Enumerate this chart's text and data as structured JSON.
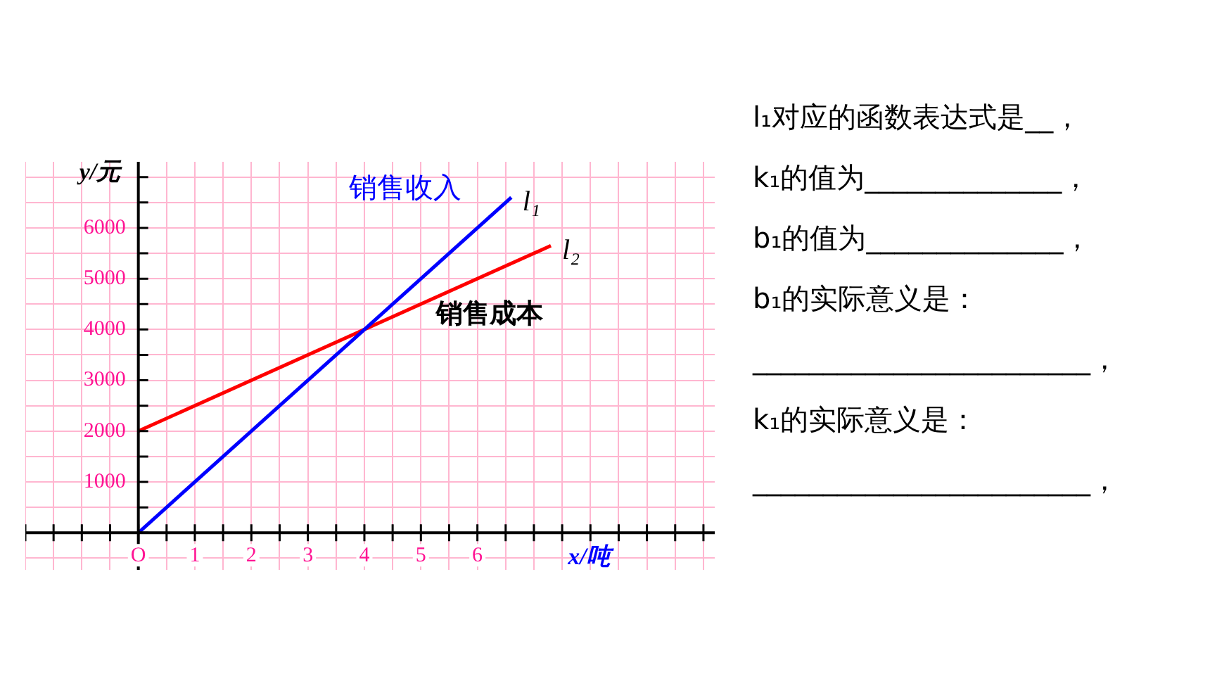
{
  "chart_data": {
    "type": "line",
    "xlabel": "x/吨",
    "ylabel": "y/元",
    "xlim": [
      -2,
      10.2
    ],
    "ylim": [
      -730,
      7300
    ],
    "xticks": [
      {
        "value": -2,
        "label": null
      },
      {
        "value": -1.5,
        "label": null
      },
      {
        "value": -1,
        "label": null
      },
      {
        "value": -0.5,
        "label": null
      },
      {
        "value": 0,
        "label": "O"
      },
      {
        "value": 0.5,
        "label": null
      },
      1,
      {
        "value": 1.5,
        "label": null
      },
      2,
      {
        "value": 2.5,
        "label": null
      },
      3,
      {
        "value": 3.5,
        "label": null
      },
      4,
      {
        "value": 4.5,
        "label": null
      },
      5,
      {
        "value": 5.5,
        "label": null
      },
      6,
      {
        "value": 6.5,
        "label": null
      },
      {
        "value": 7,
        "label": null
      },
      {
        "value": 7.5,
        "label": null
      },
      {
        "value": 8,
        "label": null
      },
      {
        "value": 8.5,
        "label": null
      },
      {
        "value": 9,
        "label": null
      },
      {
        "value": 9.5,
        "label": null
      },
      {
        "value": 10,
        "label": null
      }
    ],
    "yticks": [
      {
        "value": -500,
        "label": null
      },
      {
        "value": 0,
        "label": null
      },
      {
        "value": 500,
        "label": null
      },
      1000,
      {
        "value": 1500,
        "label": null
      },
      2000,
      {
        "value": 2500,
        "label": null
      },
      3000,
      {
        "value": 3500,
        "label": null
      },
      4000,
      {
        "value": 4500,
        "label": null
      },
      5000,
      {
        "value": 5500,
        "label": null
      },
      6000,
      {
        "value": 6500,
        "label": null
      },
      {
        "value": 7000,
        "label": null
      }
    ],
    "grid": true,
    "legend": false,
    "marker": "none",
    "line_style": "solid",
    "series": [
      {
        "name": "l₁",
        "color": "#0000ff",
        "x": [
          0,
          6.6
        ],
        "values": [
          0,
          6600
        ]
      },
      {
        "name": "l₂",
        "color": "#ff0000",
        "x": [
          0,
          7.3
        ],
        "values": [
          2000,
          5650
        ]
      }
    ],
    "annotations": [
      "销售收入",
      "销售成本",
      "l₁对应的函数表达式是__，",
      "k₁的值为______________，",
      "b₁的值为______________，",
      "b₁的实际意义是：",
      "________________________，",
      "k₁的实际意义是：",
      "________________________，"
    ]
  }
}
